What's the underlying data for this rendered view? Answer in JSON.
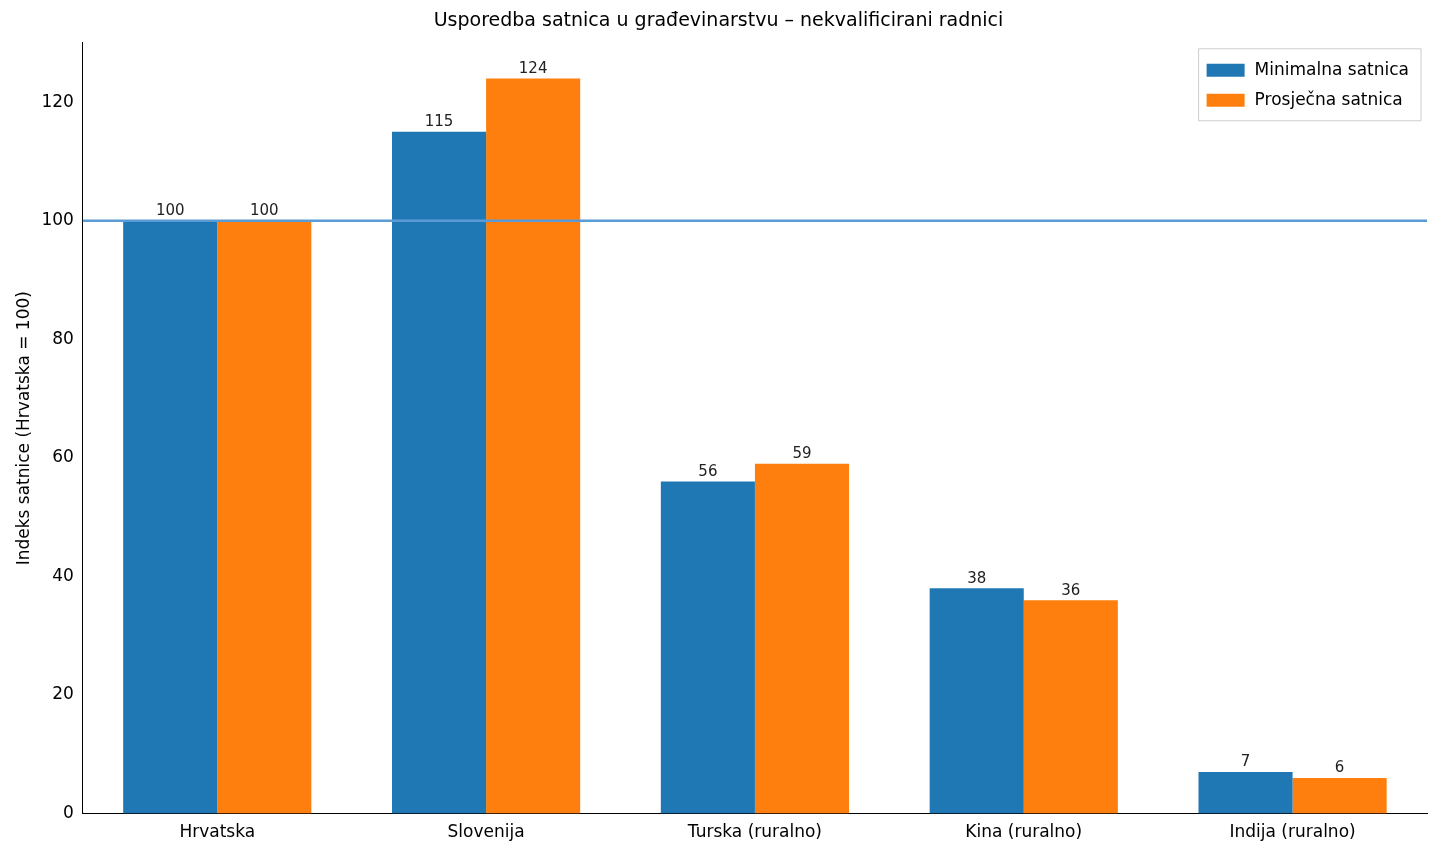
{
  "chart_data": {
    "type": "bar",
    "title": "Usporedba satnica u građevinarstvu – nekvalificirani radnici",
    "ylabel": "Indeks satnice (Hrvatska = 100)",
    "categories": [
      "Hrvatska",
      "Slovenija",
      "Turska (ruralno)",
      "Kina (ruralno)",
      "Indija (ruralno)"
    ],
    "series": [
      {
        "name": "Minimalna satnica",
        "color": "#1f77b4",
        "values": [
          100,
          115,
          56,
          38,
          7
        ]
      },
      {
        "name": "Prosječna satnica",
        "color": "#ff7f0e",
        "values": [
          100,
          124,
          59,
          36,
          6
        ]
      }
    ],
    "ylim": [
      0,
      130
    ],
    "yticks": [
      0,
      20,
      40,
      60,
      80,
      100,
      120
    ],
    "grid": false,
    "legend": "top right",
    "data_labels": true,
    "ref_lines": [
      {
        "axis": "y",
        "value": 100,
        "color": "#5b9bd5"
      }
    ]
  }
}
